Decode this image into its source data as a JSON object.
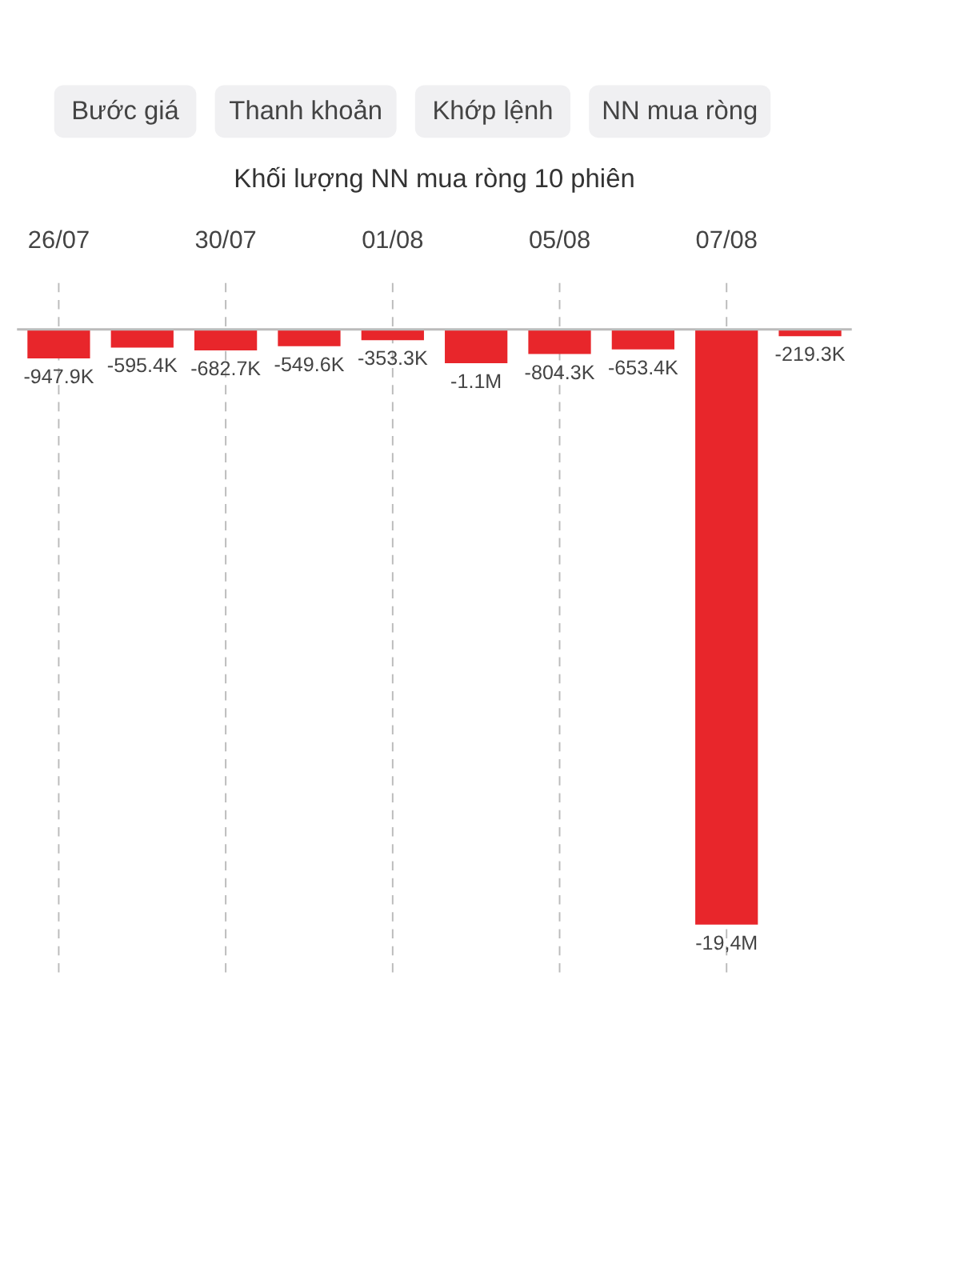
{
  "chart_data": {
    "type": "bar",
    "title": "Khối lượng NN mua ròng 10 phiên",
    "annotations": [
      "Bước giá",
      "Thanh khoản",
      "Khớp lệnh",
      "NN mua ròng"
    ],
    "categories": [
      "26/07",
      null,
      "30/07",
      null,
      "01/08",
      null,
      "05/08",
      null,
      "07/08",
      null
    ],
    "values": [
      -947900,
      -595400,
      -682700,
      -549600,
      -353300,
      -1100000,
      -804300,
      -653400,
      -19400000,
      -219300
    ],
    "value_labels": [
      "-947.9K",
      "-595.4K",
      "-682.7K",
      "-549.6K",
      "-353.3K",
      "-1.1M",
      "-804.3K",
      "-653.4K",
      "-19,4M",
      "-219.3K"
    ],
    "color": "#e8262b",
    "grid": "x"
  }
}
